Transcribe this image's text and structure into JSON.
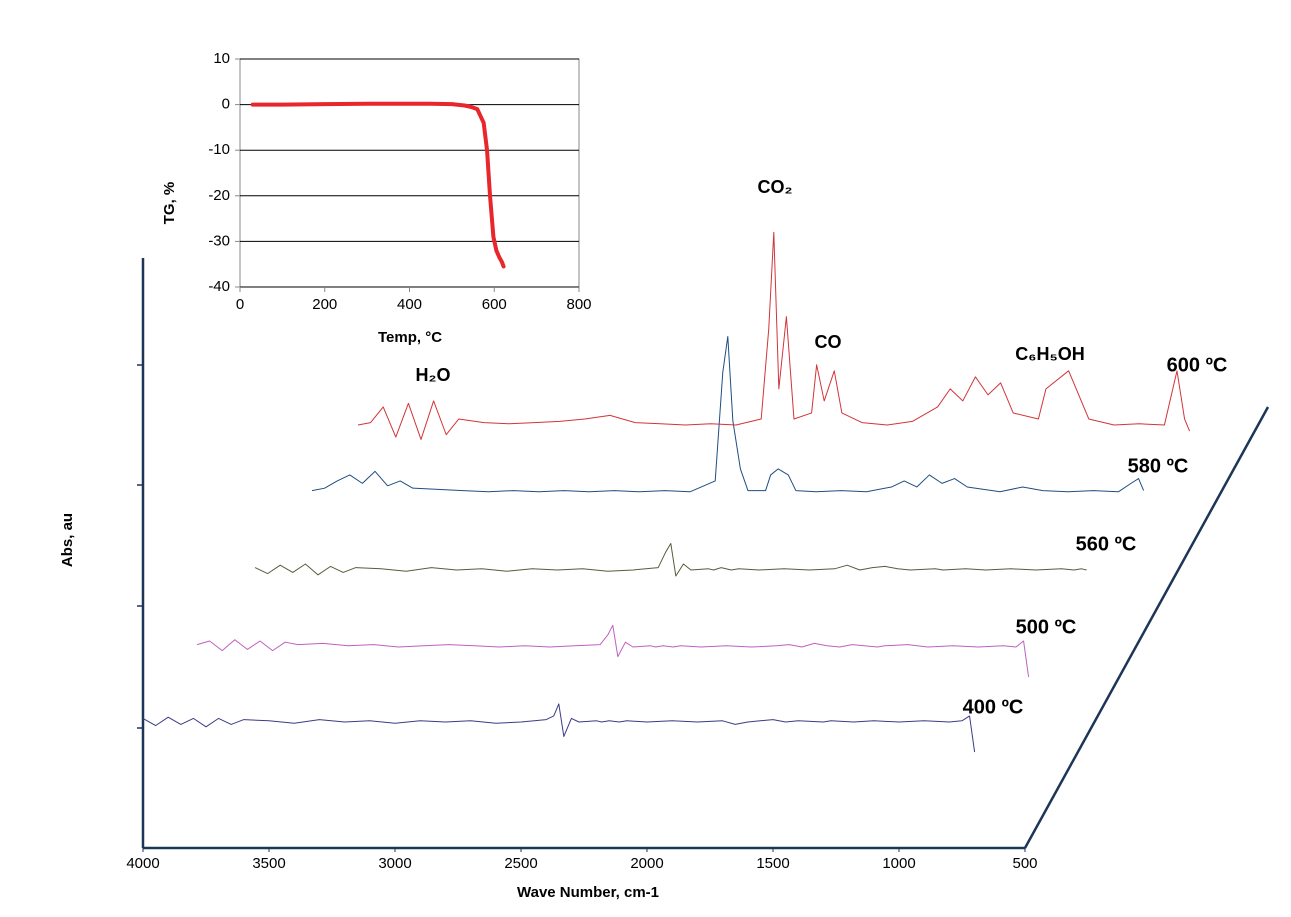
{
  "chart_data": [
    {
      "type": "line",
      "xlabel": "Temp, °C",
      "ylabel": "TG, %",
      "color": "#e8262b",
      "x": [
        30,
        100,
        200,
        300,
        400,
        450,
        500,
        530,
        545,
        560,
        575,
        583,
        590,
        598,
        605,
        612,
        618,
        622
      ],
      "values": [
        0,
        0,
        0.1,
        0.2,
        0.2,
        0.2,
        0.1,
        -0.2,
        -0.5,
        -1,
        -4,
        -10,
        -20,
        -29,
        -32,
        -33.5,
        -34.5,
        -35.5
      ],
      "xlim": [
        0,
        800
      ],
      "xticks": [
        0,
        200,
        400,
        600,
        800
      ],
      "ylim": [
        -40,
        10
      ],
      "yticks": [
        10,
        0,
        -10,
        -20,
        -30,
        -40
      ],
      "grid": true
    },
    {
      "type": "waterfall",
      "xlabel": "Wave Number, cm-1",
      "ylabel": "Abs, au",
      "xlim": [
        4000,
        500
      ],
      "xticks": [
        4000,
        3500,
        3000,
        2500,
        2000,
        1500,
        1000,
        500
      ],
      "ylim": [
        0,
        4.9
      ],
      "x": [
        4000,
        3950,
        3900,
        3850,
        3800,
        3750,
        3700,
        3650,
        3600,
        3500,
        3400,
        3300,
        3200,
        3100,
        3000,
        2900,
        2800,
        2700,
        2600,
        2500,
        2400,
        2370,
        2350,
        2330,
        2300,
        2270,
        2200,
        2180,
        2150,
        2110,
        2080,
        2000,
        1900,
        1800,
        1700,
        1650,
        1600,
        1550,
        1500,
        1450,
        1400,
        1300,
        1270,
        1180,
        1100,
        1000,
        900,
        800,
        750,
        720,
        700
      ],
      "series": [
        {
          "name": "400 ºC",
          "color": "#3b3b86",
          "values": [
            0.03,
            -0.03,
            0.04,
            -0.02,
            0.03,
            -0.04,
            0.03,
            -0.02,
            0.02,
            0.01,
            -0.01,
            0.02,
            0,
            0.01,
            -0.01,
            0.01,
            0,
            0.01,
            -0.01,
            0,
            0.02,
            0.05,
            0.15,
            -0.12,
            0.03,
            0,
            0.01,
            0,
            0.01,
            0,
            0.01,
            0,
            0.01,
            0,
            0.01,
            -0.02,
            0,
            0.01,
            0.02,
            0,
            0.01,
            0,
            0.01,
            0,
            0.01,
            0,
            0.01,
            0,
            0.01,
            0.05,
            -0.25
          ]
        },
        {
          "name": "500 ºC",
          "color": "#c060c0",
          "values": [
            0.02,
            0.05,
            -0.03,
            0.06,
            -0.02,
            0.05,
            -0.03,
            0.04,
            0.02,
            0.03,
            0.01,
            0.02,
            0,
            0.01,
            0.02,
            0.01,
            0,
            0.01,
            0,
            0.01,
            0.02,
            0.1,
            0.18,
            -0.08,
            0.04,
            0,
            0.01,
            0,
            0.01,
            0,
            0.01,
            0,
            0.01,
            0,
            0.01,
            0.02,
            0,
            0.03,
            0.01,
            0,
            0.02,
            0,
            0.01,
            0.02,
            0,
            0.01,
            0,
            0.01,
            0,
            0.05,
            -0.25
          ]
        },
        {
          "name": "560 ºC",
          "color": "#5a5a3c",
          "values": [
            0.02,
            -0.03,
            0.04,
            -0.02,
            0.05,
            -0.04,
            0.03,
            -0.02,
            0.02,
            0.01,
            -0.01,
            0.02,
            0,
            0.01,
            -0.01,
            0.01,
            0,
            0.01,
            -0.01,
            0,
            0.02,
            0.15,
            0.22,
            -0.05,
            0.05,
            0,
            0.01,
            0,
            0.02,
            0,
            0.01,
            0,
            0.01,
            0,
            0.01,
            0.04,
            0,
            0.02,
            0.03,
            0.01,
            0,
            0.01,
            0,
            0.01,
            0,
            0.01,
            0,
            0.01,
            0,
            0.01,
            0
          ]
        },
        {
          "name": "580 ºC",
          "color": "#1f4e80",
          "values": [
            0.02,
            0.04,
            0.1,
            0.15,
            0.08,
            0.18,
            0.06,
            0.1,
            0.04,
            0.03,
            0.02,
            0.01,
            0.02,
            0.01,
            0.02,
            0.01,
            0.02,
            0.01,
            0.02,
            0.01,
            0.1,
            1.0,
            1.3,
            0.6,
            0.2,
            0.02,
            0.02,
            0.15,
            0.2,
            0.15,
            0.02,
            0.01,
            0.02,
            0.01,
            0.05,
            0.1,
            0.05,
            0.15,
            0.08,
            0.12,
            0.05,
            0.02,
            0.01,
            0.05,
            0.02,
            0.01,
            0.02,
            0.01,
            0.08,
            0.12,
            0.02
          ]
        },
        {
          "name": "600 ºC",
          "color": "#d2343a",
          "values": [
            0,
            0.02,
            0.15,
            -0.1,
            0.18,
            -0.12,
            0.2,
            -0.08,
            0.05,
            0.02,
            0.01,
            0.02,
            0.03,
            0.05,
            0.08,
            0.02,
            0.01,
            0,
            0.01,
            0,
            0.05,
            0.8,
            1.6,
            0.3,
            0.9,
            0.05,
            0.1,
            0.5,
            0.2,
            0.45,
            0.1,
            0.02,
            0,
            0.03,
            0.15,
            0.3,
            0.2,
            0.4,
            0.25,
            0.35,
            0.1,
            0.05,
            0.3,
            0.45,
            0.05,
            0,
            0.01,
            0,
            0.45,
            0.05,
            -0.05
          ]
        }
      ],
      "annotations": [
        {
          "text": "H₂O"
        },
        {
          "text": "CO₂"
        },
        {
          "text": "CO"
        },
        {
          "text": "C₆H₅OH"
        }
      ]
    }
  ]
}
